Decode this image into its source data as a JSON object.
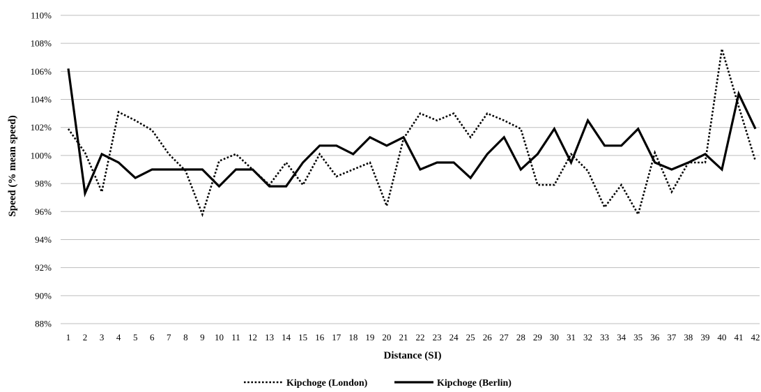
{
  "chart_data": {
    "type": "line",
    "title": "",
    "xlabel": "Distance (SI)",
    "ylabel": "Speed (% mean speed)",
    "x": [
      1,
      2,
      3,
      4,
      5,
      6,
      7,
      8,
      9,
      10,
      11,
      12,
      13,
      14,
      15,
      16,
      17,
      18,
      19,
      20,
      21,
      22,
      23,
      24,
      25,
      26,
      27,
      28,
      29,
      30,
      31,
      32,
      33,
      34,
      35,
      36,
      37,
      38,
      39,
      40,
      41,
      42
    ],
    "ylim": [
      88,
      110
    ],
    "yticks": [
      88,
      90,
      92,
      94,
      96,
      98,
      100,
      102,
      104,
      106,
      108,
      110
    ],
    "ytick_labels": [
      "88%",
      "90%",
      "92%",
      "94%",
      "96%",
      "98%",
      "100%",
      "102%",
      "104%",
      "106%",
      "108%",
      "110%"
    ],
    "grid": true,
    "legend_position": "bottom",
    "series": [
      {
        "name": "Kipchoge (London)",
        "style": "dotted",
        "color": "#000000",
        "values": [
          101.9,
          100.2,
          97.4,
          103.1,
          102.5,
          101.8,
          100.1,
          98.9,
          95.8,
          99.6,
          100.1,
          99.0,
          97.9,
          99.5,
          97.9,
          100.1,
          98.5,
          99.0,
          99.5,
          96.4,
          101.2,
          103.0,
          102.5,
          103.0,
          101.3,
          103.0,
          102.5,
          101.9,
          97.9,
          97.9,
          100.1,
          98.9,
          96.3,
          97.9,
          95.8,
          100.2,
          97.4,
          99.5,
          99.5,
          107.6,
          103.5,
          99.6
        ]
      },
      {
        "name": "Kipchoge (Berlin)",
        "style": "solid",
        "color": "#000000",
        "values": [
          106.2,
          97.3,
          100.1,
          99.5,
          98.4,
          99.0,
          99.0,
          99.0,
          99.0,
          97.8,
          99.0,
          99.0,
          97.8,
          97.8,
          99.5,
          100.7,
          100.7,
          100.1,
          101.3,
          100.7,
          101.3,
          99.0,
          99.5,
          99.5,
          98.4,
          100.1,
          101.3,
          99.0,
          100.1,
          101.9,
          99.5,
          102.5,
          100.7,
          100.7,
          101.9,
          99.5,
          99.0,
          99.5,
          100.1,
          99.0,
          104.4,
          101.9
        ]
      }
    ]
  }
}
